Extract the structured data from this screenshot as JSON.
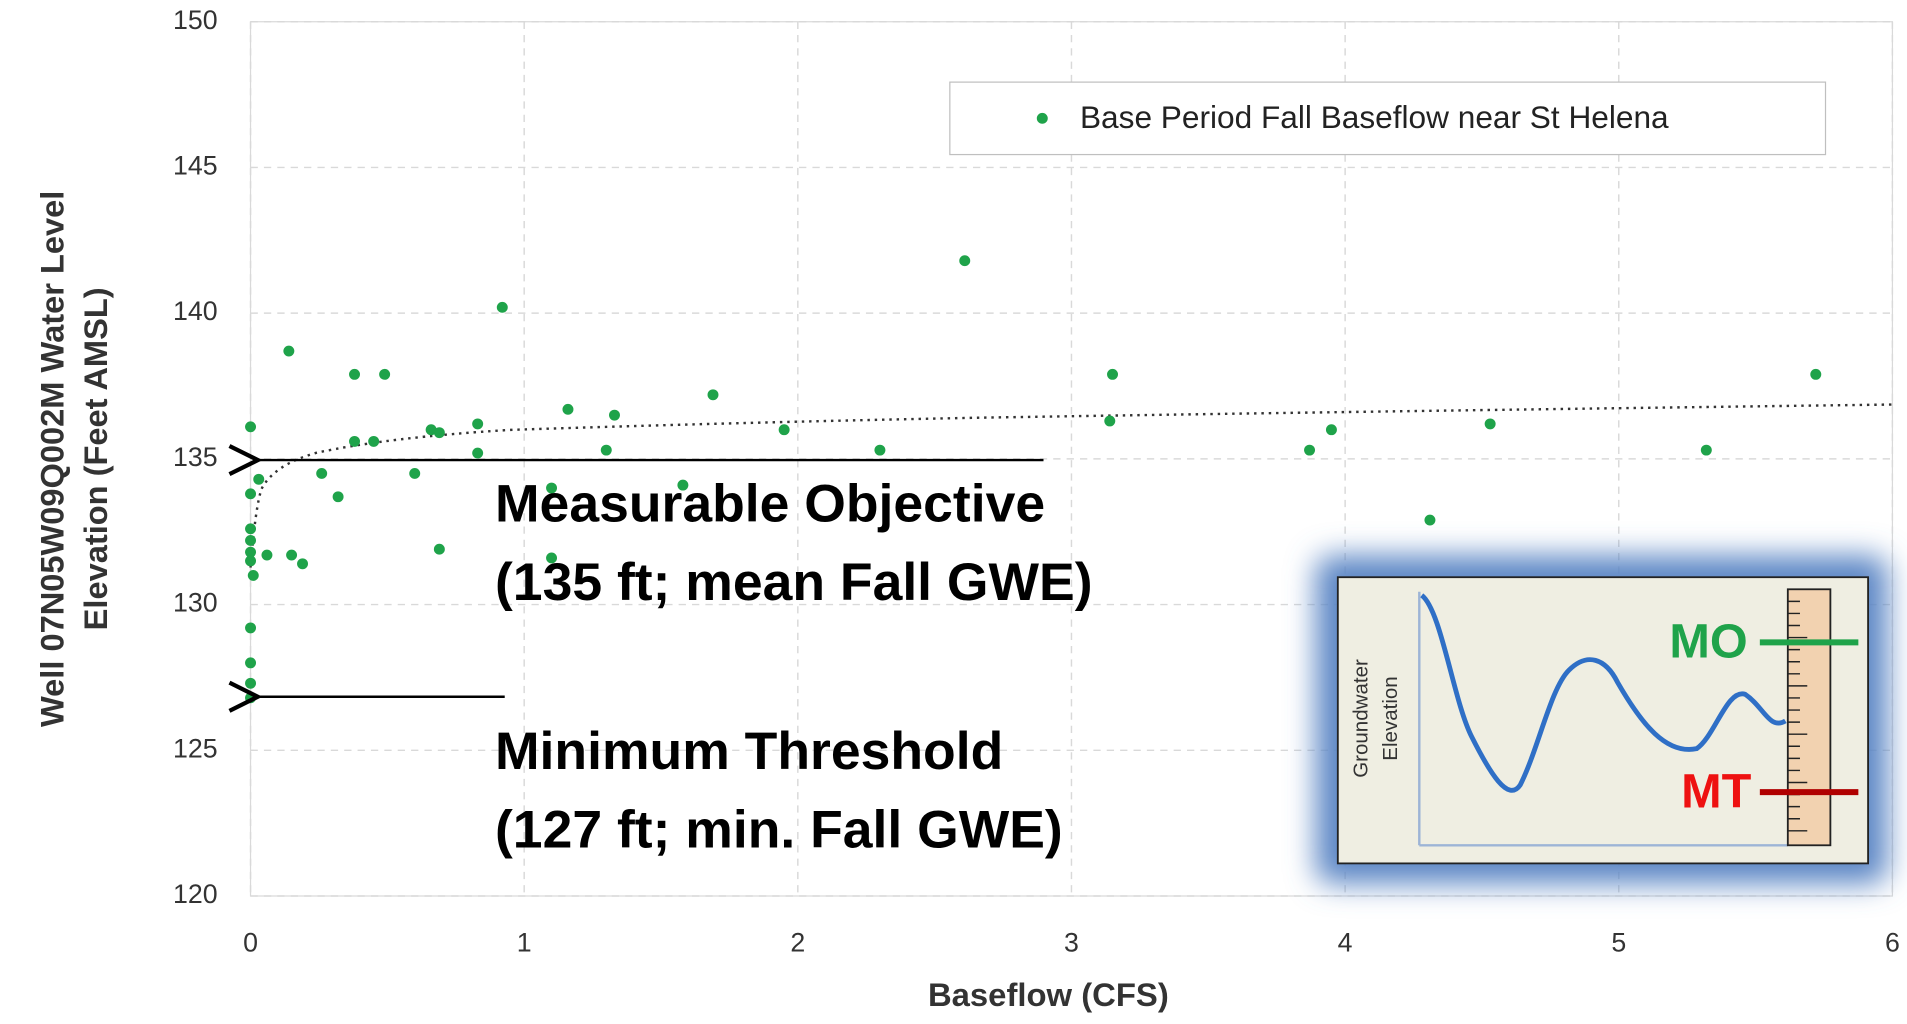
{
  "chart_data": {
    "type": "scatter",
    "xlabel": "Baseflow (CFS)",
    "ylabel": [
      "Well 07N05W09Q002M Water Level",
      "Elevation (Feet AMSL)"
    ],
    "xlim": [
      0,
      6
    ],
    "xticks": [
      0,
      1,
      2,
      3,
      4,
      5,
      6
    ],
    "ylim": [
      120,
      150
    ],
    "yticks": [
      120,
      125,
      130,
      135,
      140,
      145,
      150
    ],
    "grid": true,
    "legend": "upper right",
    "series": [
      {
        "name": "Base Period Fall Baseflow near St Helena",
        "color": "#1fa34a",
        "x": [
          0,
          0,
          0,
          0,
          0,
          0,
          0.01,
          0.03,
          0.06,
          0,
          0,
          0,
          0,
          0.14,
          0.15,
          0.19,
          0.26,
          0.32,
          0.38,
          0.38,
          0.45,
          0.49,
          0.6,
          0.66,
          0.69,
          0.69,
          0.83,
          0.83,
          0.92,
          1.1,
          1.1,
          1.16,
          1.3,
          1.33,
          1.58,
          1.69,
          1.95,
          2.3,
          2.61,
          3.14,
          3.15,
          3.87,
          3.95,
          4.31,
          4.53,
          5.32,
          5.72
        ],
        "values": [
          136.1,
          133.8,
          132.6,
          132.2,
          131.8,
          131.5,
          131.0,
          134.3,
          131.7,
          129.2,
          128.0,
          127.3,
          126.8,
          138.7,
          131.7,
          131.4,
          134.5,
          133.7,
          137.9,
          135.6,
          135.6,
          137.9,
          134.5,
          136.0,
          135.9,
          131.9,
          136.2,
          135.2,
          140.2,
          134.0,
          131.6,
          136.7,
          135.3,
          136.5,
          134.1,
          137.2,
          136.0,
          135.3,
          141.8,
          136.3,
          137.9,
          135.3,
          136.0,
          132.9,
          136.2,
          135.3,
          137.9
        ]
      }
    ],
    "annotations": [
      "Measurable Objective",
      "(135 ft; mean Fall GWE)",
      "Minimum Threshold",
      "(127 ft; min. Fall GWE)"
    ],
    "inset": {
      "ylabel": [
        "Groundwater",
        "Elevation"
      ],
      "mo": "MO",
      "mt": "MT"
    }
  }
}
